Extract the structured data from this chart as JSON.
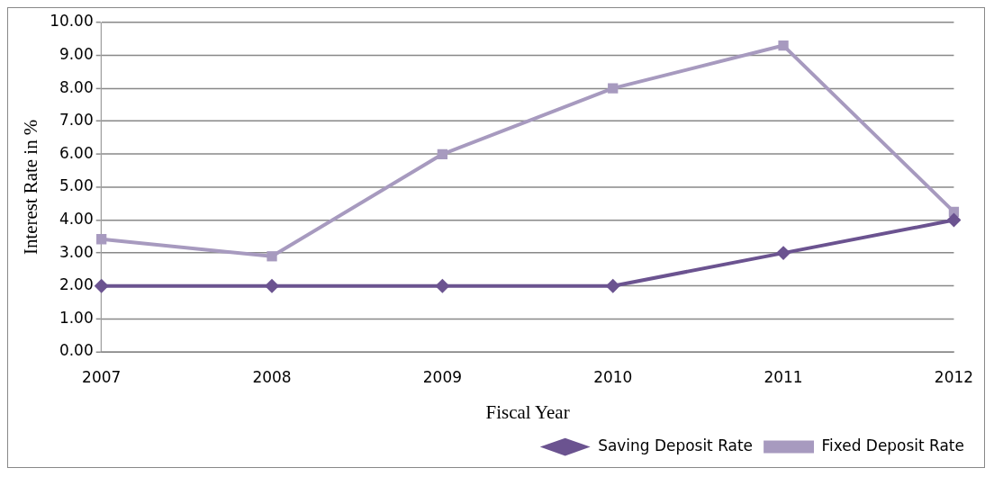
{
  "chart_data": {
    "type": "line",
    "xlabel": "Fiscal Year",
    "ylabel": "Interest Rate in %",
    "categories": [
      "2007",
      "2008",
      "2009",
      "2010",
      "2011",
      "2012"
    ],
    "series": [
      {
        "name": "Saving Deposit Rate",
        "color": "#6b5390",
        "values": [
          2,
          2,
          2,
          2,
          3,
          4
        ],
        "marker": "diamond"
      },
      {
        "name": "Fixed Deposit Rate",
        "color": "#a79abf",
        "values": [
          3.42,
          2.9,
          6,
          8,
          9.3,
          4.25
        ],
        "marker": "square"
      }
    ],
    "ylim": [
      0,
      10
    ],
    "yticks": [
      {
        "value": 0,
        "label": "0.00"
      },
      {
        "value": 1,
        "label": "1.00"
      },
      {
        "value": 2,
        "label": "2.00"
      },
      {
        "value": 3,
        "label": "3.00"
      },
      {
        "value": 4,
        "label": "4.00"
      },
      {
        "value": 5,
        "label": "5.00"
      },
      {
        "value": 6,
        "label": "6.00"
      },
      {
        "value": 7,
        "label": "7.00"
      },
      {
        "value": 8,
        "label": "8.00"
      },
      {
        "value": 9,
        "label": "9.00"
      },
      {
        "value": 10,
        "label": "10.00"
      }
    ],
    "grid": "y",
    "legend": "bottom right",
    "line_style": "solid"
  }
}
